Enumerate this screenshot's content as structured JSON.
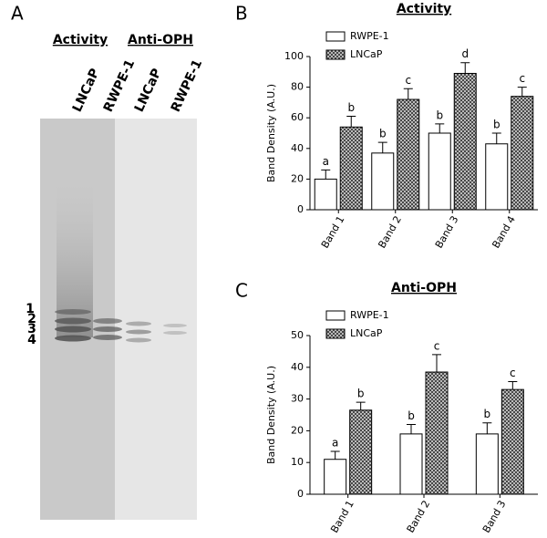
{
  "panel_labels": [
    "A",
    "B",
    "C"
  ],
  "gel": {
    "headers": [
      "Activity",
      "Anti-OPH"
    ],
    "lanes": [
      "LNCaP",
      "RWPE-1",
      "LNCaP",
      "RWPE-1"
    ],
    "band_numbers": [
      "1",
      "2",
      "3",
      "4"
    ]
  },
  "chart_data": [
    {
      "type": "bar",
      "title": "Activity",
      "y_label": "Band Density (A.U.)",
      "categories": [
        "Band 1",
        "Band 2",
        "Band 3",
        "Band 4"
      ],
      "series": [
        {
          "name": "RWPE-1",
          "color": "#ffffff",
          "hatch": false,
          "values": [
            20,
            37,
            50,
            43
          ],
          "errors": [
            6,
            7,
            6,
            7
          ],
          "letters": [
            "a",
            "b",
            "b",
            "b"
          ]
        },
        {
          "name": "LNCaP",
          "color": "#666666",
          "hatch": true,
          "values": [
            54,
            72,
            89,
            74
          ],
          "errors": [
            7,
            7,
            7,
            6
          ],
          "letters": [
            "b",
            "c",
            "d",
            "c"
          ]
        }
      ],
      "ylim": [
        0,
        100
      ],
      "yticks": [
        0,
        20,
        40,
        60,
        80,
        100
      ]
    },
    {
      "type": "bar",
      "title": "Anti-OPH",
      "y_label": "Band Density (A.U.)",
      "categories": [
        "Band 1",
        "Band 2",
        "Band 3"
      ],
      "series": [
        {
          "name": "RWPE-1",
          "color": "#ffffff",
          "hatch": false,
          "values": [
            11,
            19,
            19
          ],
          "errors": [
            2.5,
            3,
            3.5
          ],
          "letters": [
            "a",
            "b",
            "b"
          ]
        },
        {
          "name": "LNCaP",
          "color": "#666666",
          "hatch": true,
          "values": [
            26.5,
            38.5,
            33
          ],
          "errors": [
            2.5,
            5.5,
            2.5
          ],
          "letters": [
            "b",
            "c",
            "c"
          ]
        }
      ],
      "ylim": [
        0,
        50
      ],
      "yticks": [
        0,
        10,
        20,
        30,
        40,
        50
      ]
    }
  ]
}
